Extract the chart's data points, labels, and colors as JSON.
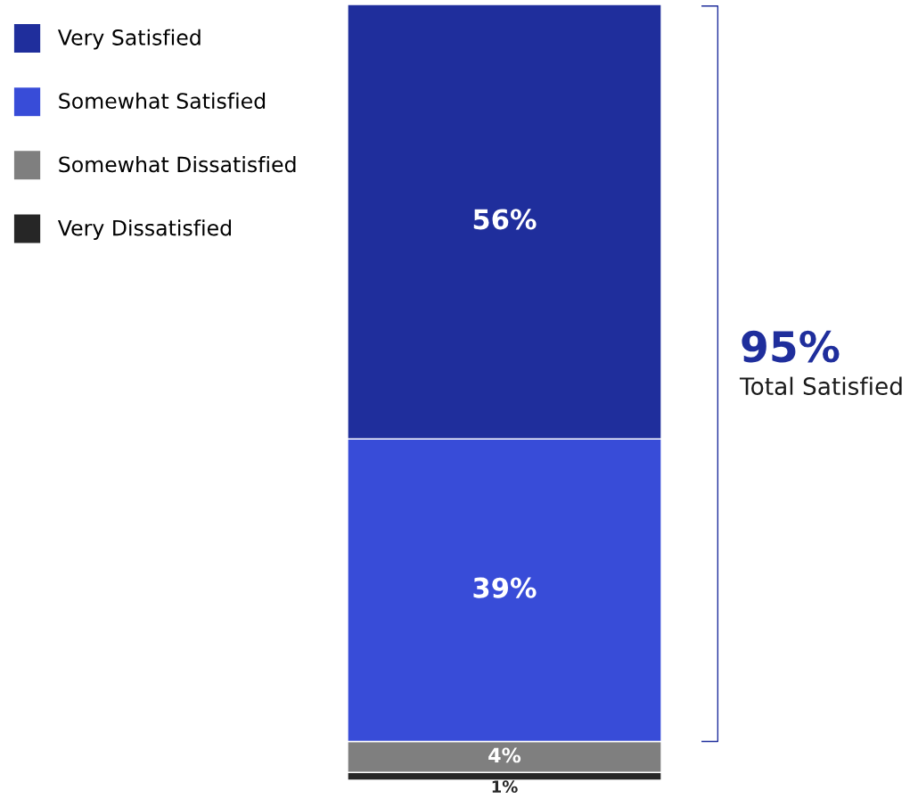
{
  "chart_data": {
    "type": "bar",
    "stacked": true,
    "categories": [
      null
    ],
    "series": [
      {
        "name": "Very Dissatisfied",
        "color": "#262626",
        "values": [
          1
        ],
        "value_labels": [
          "1%"
        ]
      },
      {
        "name": "Somewhat Dissatisfied",
        "color": "#7f7f7f",
        "values": [
          4
        ],
        "value_labels": [
          "4%"
        ]
      },
      {
        "name": "Somewhat Satisfied",
        "color": "#384cd8",
        "values": [
          39
        ],
        "value_labels": [
          "39%"
        ]
      },
      {
        "name": "Very Satisfied",
        "color": "#1f2e9c",
        "values": [
          56
        ],
        "value_labels": [
          "56%"
        ]
      }
    ],
    "annotations": [
      "95%",
      "Total Satisfied"
    ],
    "legend": "top left"
  }
}
